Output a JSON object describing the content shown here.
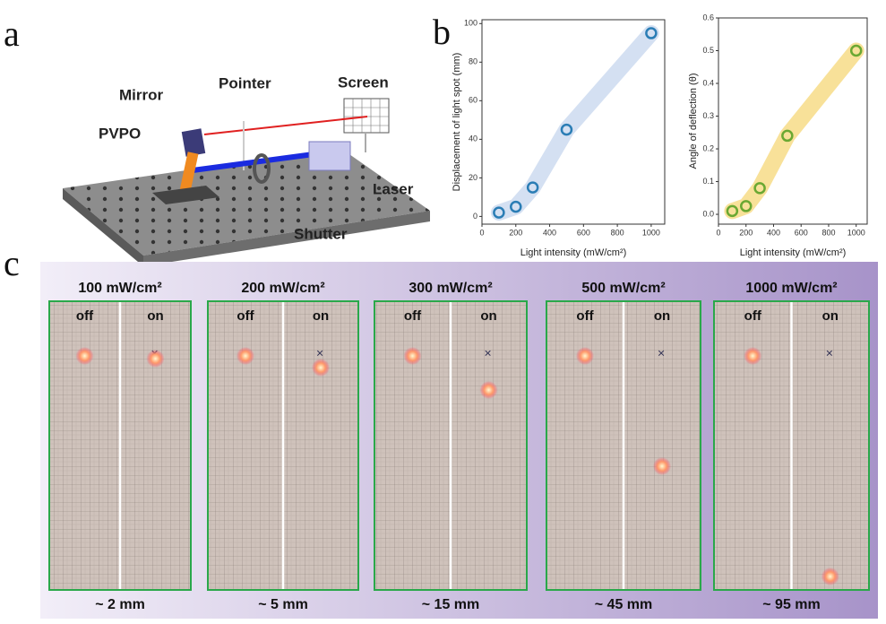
{
  "panel_labels": {
    "a": "a",
    "b": "b",
    "c": "c"
  },
  "setup": {
    "mirror": "Mirror",
    "pointer": "Pointer",
    "screen": "Screen",
    "pvpo": "PVPO",
    "laser": "Laser",
    "shutter": "Shutter"
  },
  "chart_data": [
    {
      "type": "scatter",
      "x_label": "Light intensity (mW/cm²)",
      "y_label": "Displacement of light spot (mm)",
      "x": [
        100,
        200,
        300,
        500,
        1000
      ],
      "series": [
        {
          "color": "#2a7db5",
          "values": [
            2,
            5,
            15,
            45,
            95
          ]
        }
      ],
      "band_color": "#c9d8ef",
      "xlim": [
        0,
        1080
      ],
      "ylim": [
        -4,
        102
      ],
      "xticks": [
        0,
        200,
        400,
        600,
        800,
        1000
      ],
      "yticks": [
        0,
        20,
        40,
        60,
        80,
        100
      ]
    },
    {
      "type": "scatter",
      "x_label": "Light intensity (mW/cm²)",
      "y_label": "Angle of deflection (θ)",
      "x": [
        100,
        200,
        300,
        500,
        1000
      ],
      "series": [
        {
          "color": "#6aa832",
          "values": [
            0.01,
            0.025,
            0.08,
            0.24,
            0.5
          ]
        }
      ],
      "band_color": "#f6d97f",
      "xlim": [
        0,
        1080
      ],
      "ylim": [
        -0.03,
        0.6
      ],
      "xticks": [
        0,
        200,
        400,
        600,
        800,
        1000
      ],
      "yticks": [
        {
          "value": 0,
          "label": "0.0"
        },
        0.1,
        0.2,
        0.3,
        0.4,
        0.5,
        0.6
      ]
    }
  ],
  "photos": [
    {
      "intensity": "100 mW/cm²",
      "off": "off",
      "on": "on",
      "displacement": "~ 2 mm"
    },
    {
      "intensity": "200 mW/cm²",
      "off": "off",
      "on": "on",
      "displacement": "~ 5 mm"
    },
    {
      "intensity": "300 mW/cm²",
      "off": "off",
      "on": "on",
      "displacement": "~ 15 mm"
    },
    {
      "intensity": "500 mW/cm²",
      "off": "off",
      "on": "on",
      "displacement": "~ 45 mm"
    },
    {
      "intensity": "1000 mW/cm²",
      "off": "off",
      "on": "on",
      "displacement": "~ 95 mm"
    }
  ]
}
